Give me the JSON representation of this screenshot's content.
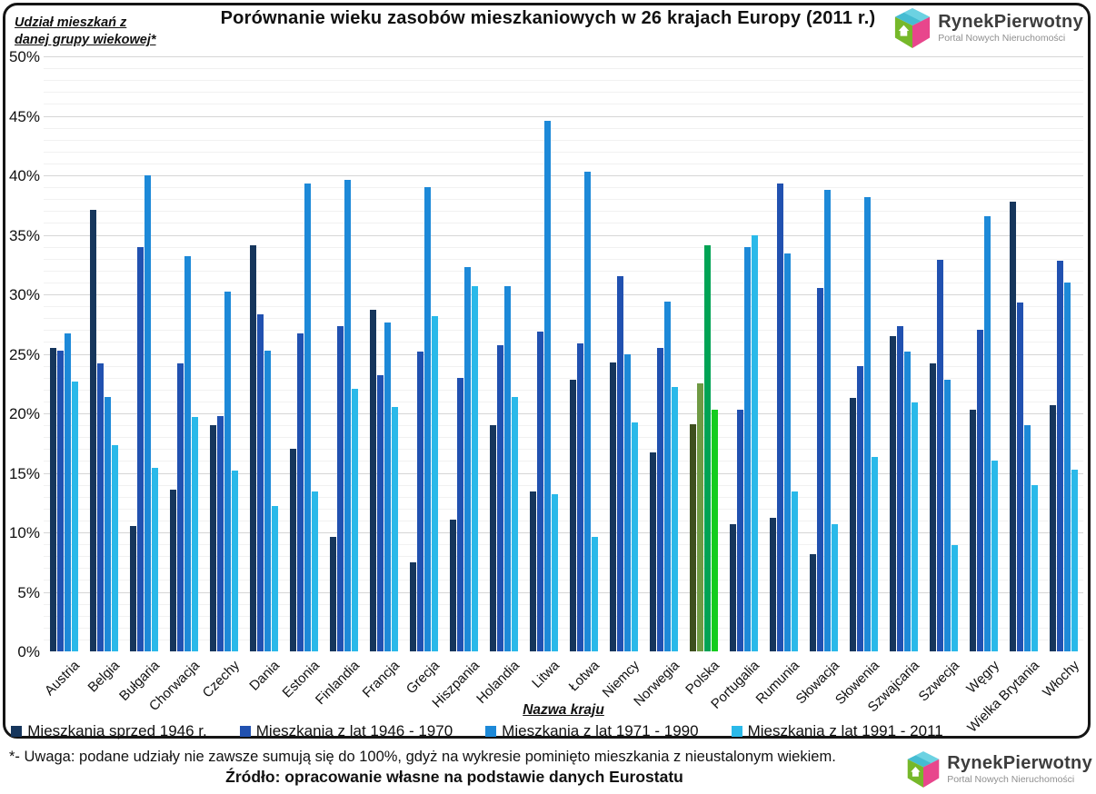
{
  "page": {
    "title": "Porównanie wieku zasobów mieszkaniowych w 26 krajach Europy (2011 r.)",
    "y_axis_note_line1": "Udział mieszkań z",
    "y_axis_note_line2": "danej grupy wiekowej*",
    "x_axis_title": "Nazwa kraju",
    "footnote": "*- Uwaga: podane udziały nie zawsze sumują się do 100%, gdyż na wykresie pominięto mieszkania z nieustalonym wiekiem.",
    "source": "Źródło: opracowanie własne na podstawie danych Eurostatu"
  },
  "logo": {
    "name": "RynekPierwotny",
    "tagline": "Portal Nowych Nieruchomości",
    "cube_colors": {
      "top": "#45bcd2",
      "left": "#76b82a",
      "right": "#e8468c"
    }
  },
  "chart_data": {
    "type": "bar",
    "title": "Porównanie wieku zasobów mieszkaniowych w 26 krajach Europy (2011 r.)",
    "xlabel": "Nazwa kraju",
    "ylabel": "Udział mieszkań z danej grupy wiekowej*",
    "ylim": [
      0,
      50
    ],
    "ytick_step": 5,
    "ytick_suffix": "%",
    "grid": {
      "major_step": 5,
      "minor_step": 1,
      "major_color": "#d6d6d6",
      "minor_color": "#f1f1f1"
    },
    "legend_position": "bottom",
    "categories": [
      "Austria",
      "Belgia",
      "Bułgaria",
      "Chorwacja",
      "Czechy",
      "Dania",
      "Estonia",
      "Finlandia",
      "Francja",
      "Grecja",
      "Hiszpania",
      "Holandia",
      "Litwa",
      "Łotwa",
      "Niemcy",
      "Norwegia",
      "Polska",
      "Portugalia",
      "Rumunia",
      "Słowacja",
      "Słowenia",
      "Szwajcaria",
      "Szwecja",
      "Węgry",
      "Wielka Brytania",
      "Włochy"
    ],
    "series": [
      {
        "name": "Mieszkania sprzed 1946 r.",
        "color": "#16365c",
        "values": [
          25.5,
          37.1,
          10.5,
          13.6,
          19.0,
          34.1,
          17.0,
          9.6,
          28.7,
          7.5,
          11.1,
          19.0,
          13.4,
          22.8,
          24.3,
          16.7,
          19.1,
          10.7,
          11.2,
          8.2,
          21.3,
          26.5,
          24.2,
          20.3,
          37.8,
          20.7
        ]
      },
      {
        "name": "Mieszkania z lat 1946 - 1970",
        "color": "#2151b0",
        "values": [
          25.3,
          24.2,
          34.0,
          24.2,
          19.8,
          28.3,
          26.7,
          27.3,
          23.2,
          25.2,
          23.0,
          25.7,
          26.9,
          25.9,
          31.5,
          25.5,
          22.5,
          20.3,
          39.3,
          30.5,
          24.0,
          27.3,
          32.9,
          27.0,
          29.3,
          32.8
        ]
      },
      {
        "name": "Mieszkania z lat 1971 - 1990",
        "color": "#1d89d8",
        "values": [
          26.7,
          21.4,
          40.0,
          33.2,
          30.2,
          25.3,
          39.3,
          39.6,
          27.6,
          39.0,
          32.3,
          30.7,
          44.6,
          40.3,
          25.0,
          29.4,
          34.1,
          34.0,
          33.4,
          38.8,
          38.2,
          25.2,
          22.8,
          36.6,
          19.0,
          31.0
        ]
      },
      {
        "name": "Mieszkania z lat 1991 - 2011",
        "color": "#2ab9e9",
        "values": [
          22.7,
          17.3,
          15.4,
          19.7,
          15.2,
          12.2,
          13.4,
          22.1,
          20.5,
          28.2,
          30.7,
          21.4,
          13.2,
          9.6,
          19.2,
          22.2,
          20.3,
          35.0,
          13.4,
          10.7,
          16.3,
          20.9,
          8.9,
          16.0,
          14.0,
          15.3
        ]
      }
    ],
    "highlight": {
      "category": "Polska",
      "colors": [
        "#3e4f1e",
        "#6f9a44",
        "#00a354",
        "#14cc1e"
      ]
    }
  }
}
